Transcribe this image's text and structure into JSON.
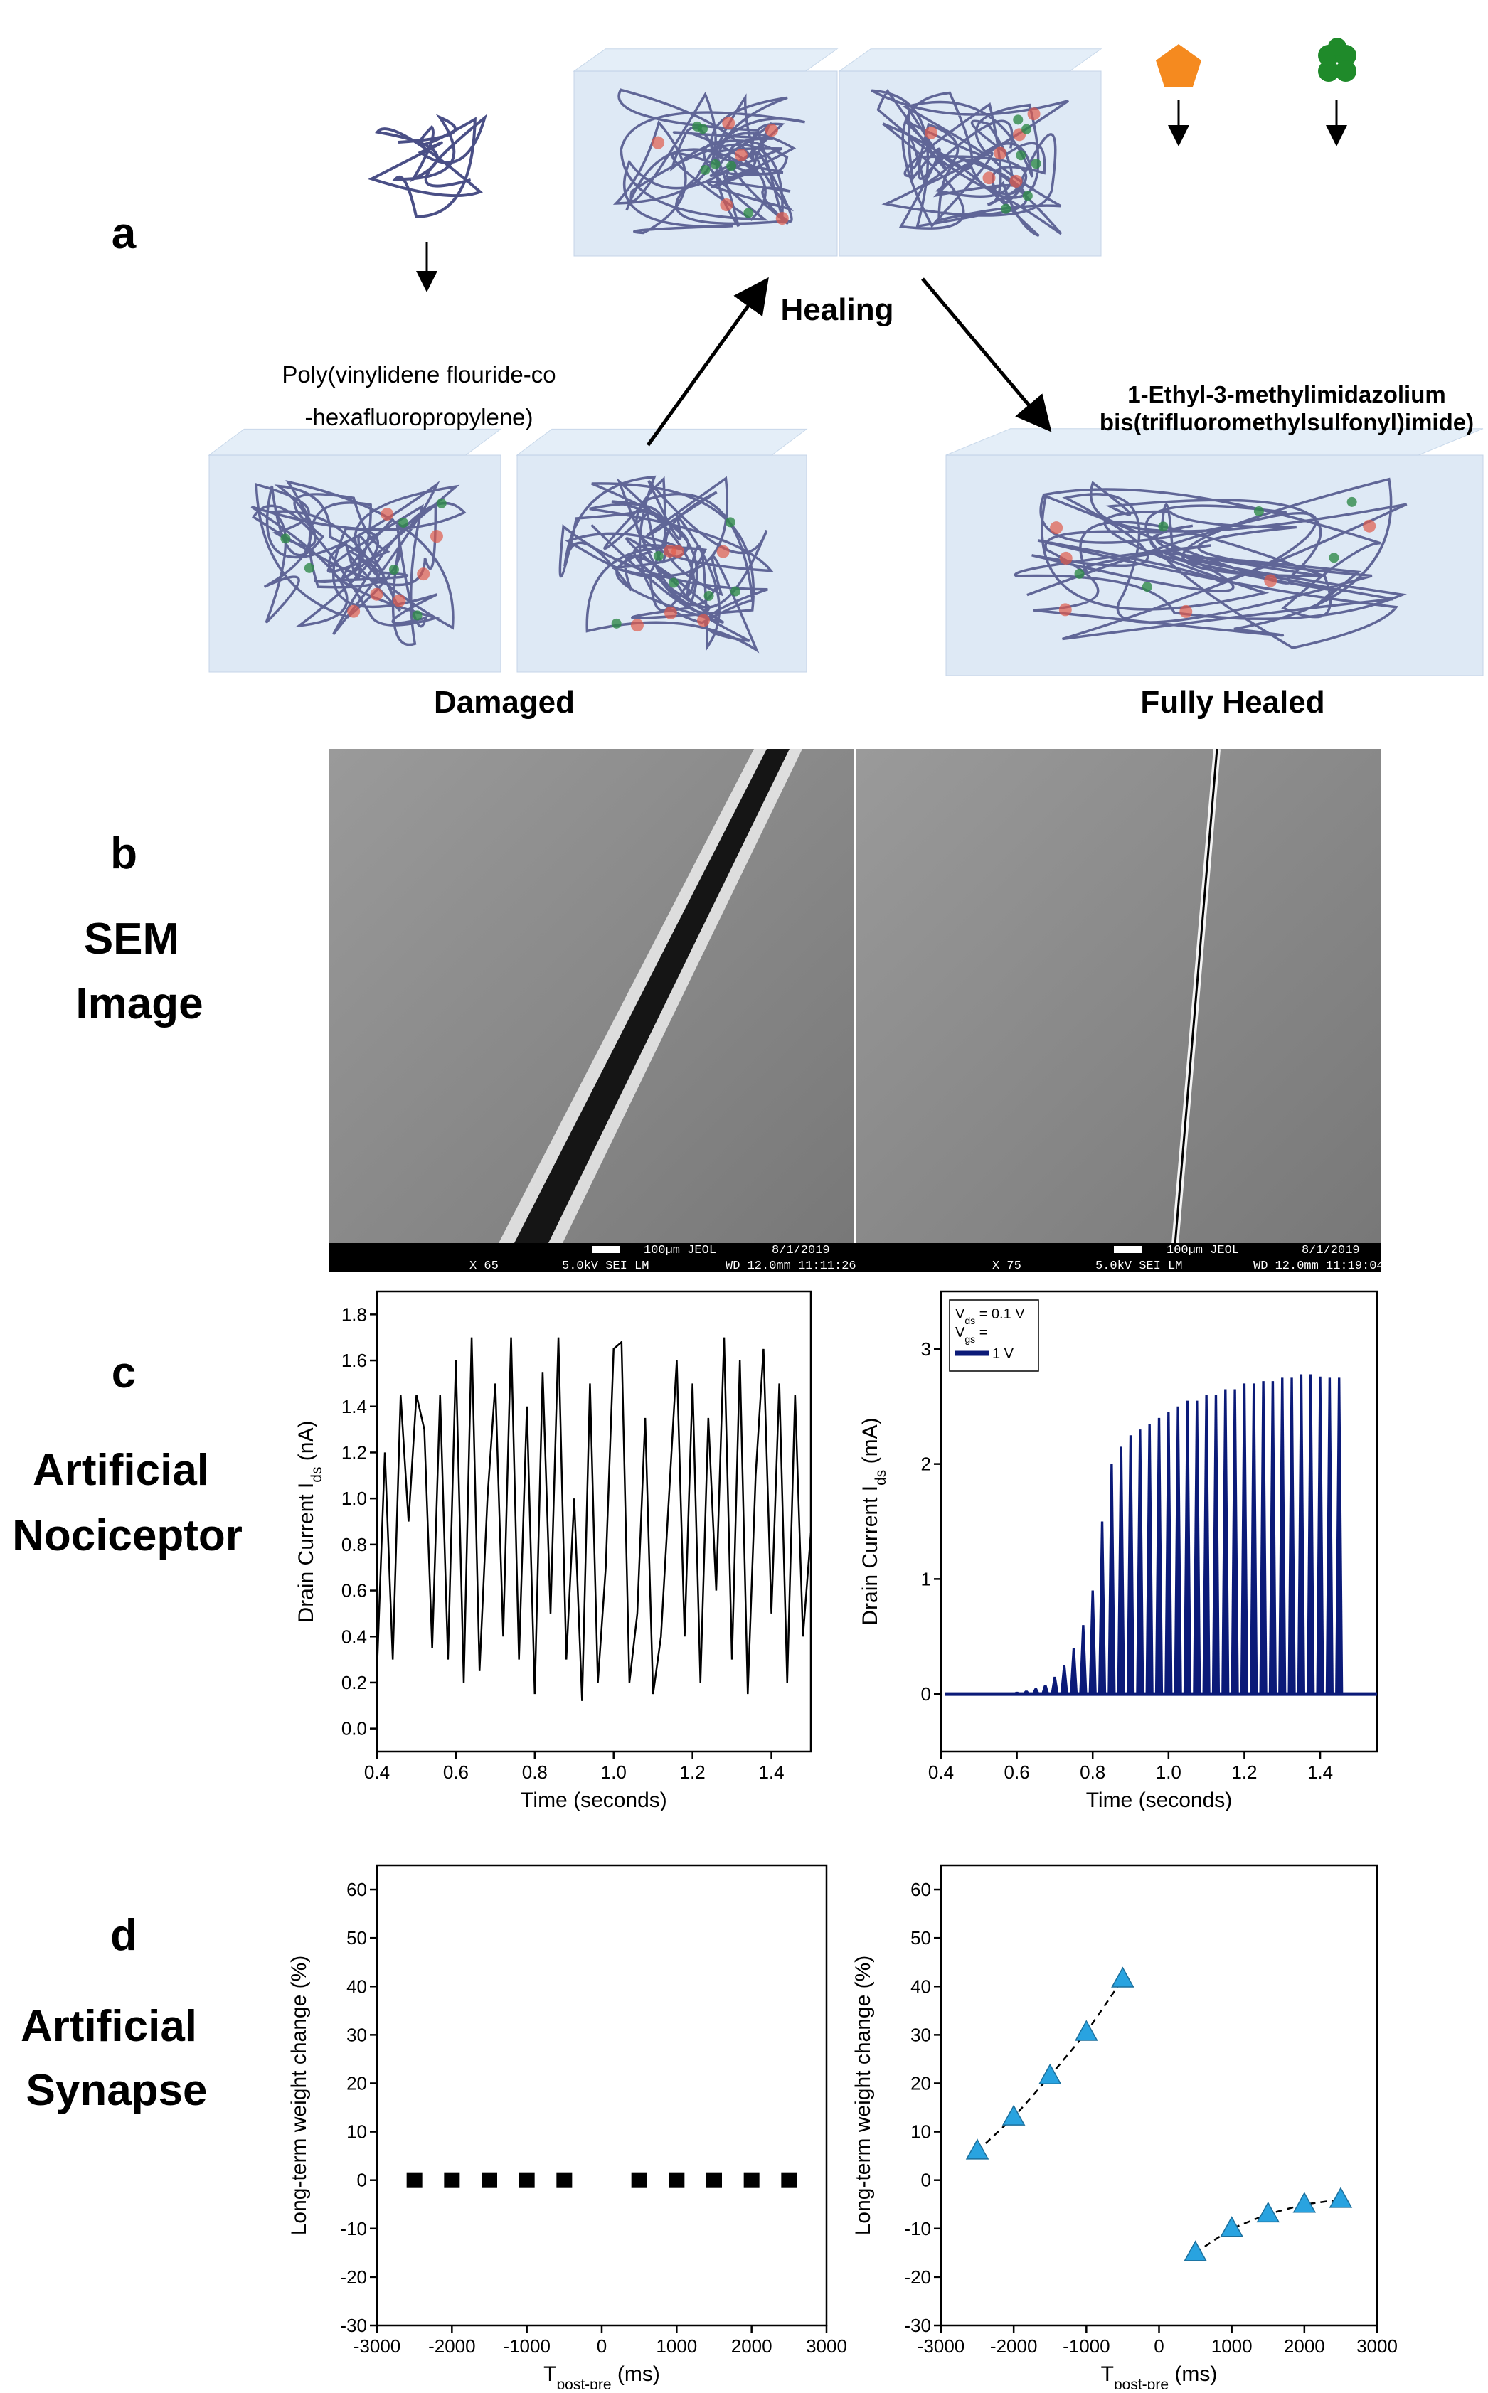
{
  "panel_labels": [
    "a",
    "b",
    "c",
    "d"
  ],
  "row_titles": {
    "b": [
      "SEM",
      "Image"
    ],
    "c": [
      "Artificial",
      "Nociceptor"
    ],
    "d": [
      "Artificial",
      "Synapse"
    ]
  },
  "diagram": {
    "healing": "Healing",
    "damaged": "Damaged",
    "fully_healed": "Fully Healed",
    "polymer": [
      "Poly(vinylidene flouride-co",
      "-hexafluoropropylene)"
    ],
    "ionic_liquid": [
      "1-Ethyl-3-methylimidazolium",
      "bis(trifluoromethylsulfonyl)imide)"
    ]
  },
  "sem": [
    {
      "scale": "100µm JEOL",
      "date": "8/1/2019",
      "mag": "X 65",
      "mode": "5.0kV SEI  LM",
      "wd": "WD 12.0mm 11:11:26"
    },
    {
      "scale": "100µm JEOL",
      "date": "8/1/2019",
      "mag": "X 75",
      "mode": "5.0kV SEI  LM",
      "wd": "WD 12.0mm 11:19:04"
    }
  ],
  "chart_data": [
    {
      "type": "line",
      "xlabel": "Time (seconds)",
      "ylabel": [
        "Drain Current I",
        "ds",
        " (nA)"
      ],
      "xlim": [
        0.4,
        1.5
      ],
      "ylim": [
        -0.1,
        1.9
      ],
      "xticks": [
        0.4,
        0.6,
        0.8,
        {
          "value": 1,
          "label": "1.0"
        },
        1.2,
        1.4
      ],
      "yticks": [
        {
          "value": 0,
          "label": "0.0"
        },
        0.2,
        0.4,
        0.6,
        0.8,
        {
          "value": 1,
          "label": "1.0"
        },
        1.2,
        1.4,
        1.6,
        1.8
      ],
      "x": [
        0.4,
        0.42,
        0.44,
        0.46,
        0.48,
        0.5,
        0.52,
        0.54,
        0.56,
        0.58,
        0.6,
        0.62,
        0.64,
        0.66,
        0.68,
        0.7,
        0.72,
        0.74,
        0.76,
        0.78,
        0.8,
        0.82,
        0.84,
        0.86,
        0.88,
        0.9,
        0.92,
        0.94,
        0.96,
        0.98,
        1.0,
        1.02,
        1.04,
        1.06,
        1.08,
        1.1,
        1.12,
        1.14,
        1.16,
        1.18,
        1.2,
        1.22,
        1.24,
        1.26,
        1.28,
        1.3,
        1.32,
        1.34,
        1.36,
        1.38,
        1.4,
        1.42,
        1.44,
        1.46,
        1.48,
        1.5
      ],
      "series": [
        {
          "color": "#000000",
          "values": [
            0.25,
            1.2,
            0.3,
            1.45,
            0.9,
            1.45,
            1.3,
            0.35,
            1.45,
            0.3,
            1.6,
            0.2,
            1.7,
            0.25,
            1.0,
            1.5,
            0.4,
            1.7,
            0.3,
            1.4,
            0.15,
            1.55,
            0.5,
            1.7,
            0.3,
            1.0,
            0.12,
            1.5,
            0.2,
            0.7,
            1.65,
            1.68,
            0.2,
            0.5,
            1.35,
            0.15,
            0.4,
            1.0,
            1.6,
            0.4,
            1.5,
            0.2,
            1.35,
            0.6,
            1.7,
            0.3,
            1.6,
            0.15,
            1.1,
            1.65,
            0.5,
            1.5,
            0.2,
            1.45,
            0.4,
            0.85
          ]
        }
      ]
    },
    {
      "type": "pulse",
      "xlabel": "Time (seconds)",
      "ylabel": [
        "Drain Current I",
        "ds",
        " (mA)"
      ],
      "xlim": [
        0.4,
        1.55
      ],
      "ylim": [
        -0.5,
        3.5
      ],
      "xticks": [
        0.4,
        0.6,
        0.8,
        {
          "value": 1,
          "label": "1.0"
        },
        1.2,
        1.4
      ],
      "yticks": [
        0,
        1,
        2,
        3
      ],
      "legend": "upper left",
      "annotations": [
        [
          "V",
          "ds",
          " = 0.1 V"
        ],
        [
          "V",
          "gs",
          " ="
        ]
      ],
      "x": [
        0.6,
        0.625,
        0.65,
        0.675,
        0.7,
        0.725,
        0.75,
        0.775,
        0.8,
        0.825,
        0.85,
        0.875,
        0.9,
        0.925,
        0.95,
        0.975,
        1.0,
        1.025,
        1.05,
        1.075,
        1.1,
        1.125,
        1.15,
        1.175,
        1.2,
        1.225,
        1.25,
        1.275,
        1.3,
        1.325,
        1.35,
        1.375,
        1.4,
        1.425,
        1.45
      ],
      "series": [
        {
          "name": "1 V",
          "color": "#0b1a78",
          "values": [
            0.02,
            0.03,
            0.05,
            0.08,
            0.15,
            0.25,
            0.4,
            0.6,
            0.9,
            1.5,
            2.0,
            2.15,
            2.25,
            2.3,
            2.35,
            2.4,
            2.45,
            2.5,
            2.55,
            2.55,
            2.6,
            2.6,
            2.65,
            2.65,
            2.7,
            2.7,
            2.72,
            2.72,
            2.75,
            2.75,
            2.78,
            2.78,
            2.76,
            2.75,
            2.75
          ]
        }
      ]
    },
    {
      "type": "scatter",
      "xlabel": [
        "T",
        "post-pre",
        " (ms)"
      ],
      "ylabel": "Long-term weight change (%)",
      "xlim": [
        -3000,
        3000
      ],
      "ylim": [
        -30,
        65
      ],
      "xticks": [
        -3000,
        -2000,
        -1000,
        0,
        1000,
        2000,
        3000
      ],
      "yticks": [
        -30,
        -20,
        -10,
        0,
        10,
        20,
        30,
        40,
        50,
        60
      ],
      "series": [
        {
          "color": "#000000",
          "marker": "square",
          "x": [
            -2500,
            -2000,
            -1500,
            -1000,
            -500,
            500,
            1000,
            1500,
            2000,
            2500
          ],
          "values": [
            0,
            0,
            0,
            0,
            0,
            0,
            0,
            0,
            0,
            0
          ]
        }
      ]
    },
    {
      "type": "scatter",
      "xlabel": [
        "T",
        "post-pre",
        " (ms)"
      ],
      "ylabel": "Long-term weight change (%)",
      "xlim": [
        -3000,
        3000
      ],
      "ylim": [
        -30,
        65
      ],
      "xticks": [
        -3000,
        -2000,
        -1000,
        0,
        1000,
        2000,
        3000
      ],
      "yticks": [
        -30,
        -20,
        -10,
        0,
        10,
        20,
        30,
        40,
        50,
        60
      ],
      "series": [
        {
          "color": "#29a3e0",
          "marker": "triangle",
          "fit": true,
          "x": [
            -2500,
            -2000,
            -1500,
            -1000,
            -500
          ],
          "values": [
            6,
            13,
            21.5,
            30.5,
            41.5
          ]
        },
        {
          "color": "#29a3e0",
          "marker": "triangle",
          "fit": true,
          "x": [
            500,
            1000,
            1500,
            2000,
            2500
          ],
          "values": [
            -15,
            -10,
            -7,
            -5,
            -4
          ]
        }
      ]
    }
  ]
}
